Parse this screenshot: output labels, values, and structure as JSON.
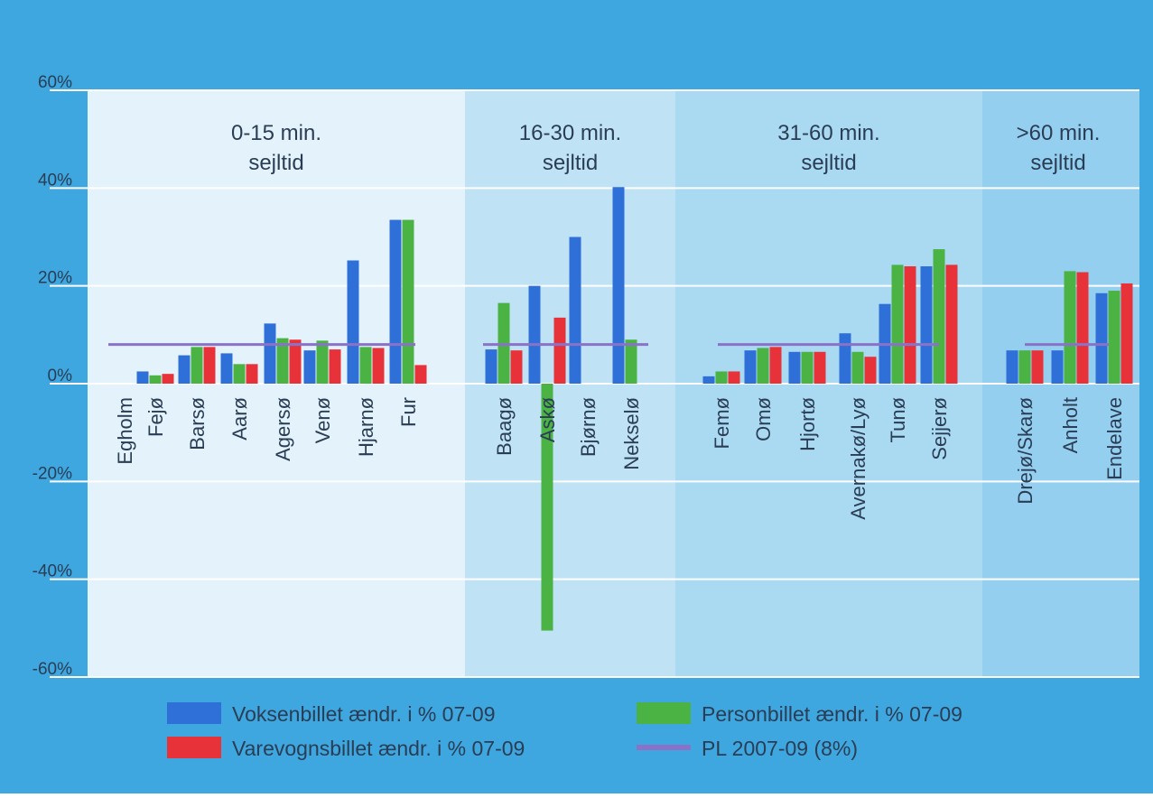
{
  "colors": {
    "frame": "#3fa7df",
    "panel_1": "#e4f3fb",
    "panel_2": "#bfe3f5",
    "panel_3": "#a9daf2",
    "panel_4": "#95cfef",
    "series_voksen": "#2f6fd8",
    "series_person": "#4bb244",
    "series_varevogn": "#e8323a",
    "series_pl": "#8a72c8",
    "text": "#2a3d55"
  },
  "chart_data": {
    "type": "bar",
    "ylim": [
      -60,
      60
    ],
    "y_ticks": [
      60,
      40,
      20,
      0,
      -20,
      -40,
      -60
    ],
    "y_tick_labels": [
      "60%",
      "40%",
      "20%",
      "0%",
      "-20%",
      "-40%",
      "-60%"
    ],
    "grid": true,
    "legend_position": "bottom",
    "groups": [
      {
        "label_line1": "0-15 min.",
        "label_line2": "sejltid",
        "categories": [
          "Egholm",
          "Fejø",
          "Barsø",
          "Aarø",
          "Agersø",
          "Venø",
          "Hjarnø",
          "Fur"
        ]
      },
      {
        "label_line1": "16-30 min.",
        "label_line2": "sejltid",
        "categories": [
          "Baagø",
          "Askø",
          "Bjørnø",
          "Nekselø"
        ]
      },
      {
        "label_line1": "31-60 min.",
        "label_line2": "sejltid",
        "categories": [
          "Femø",
          "Omø",
          "Hjortø",
          "Avernakø/Lyø",
          "Tunø",
          "Sejjerø"
        ]
      },
      {
        "label_line1": ">60 min.",
        "label_line2": "sejltid",
        "categories": [
          "Drejø/Skarø",
          "Anholt",
          "Endelave"
        ]
      }
    ],
    "series": [
      {
        "name": "Voksenbillet ændr. i % 07-09",
        "key": "voksen",
        "values": [
          [
            null,
            2.5,
            5.8,
            6.2,
            12.3,
            6.8,
            25.2,
            33.5
          ],
          [
            7.0,
            20.0,
            30.0,
            40.2
          ],
          [
            1.5,
            6.8,
            6.5,
            10.3,
            16.3,
            24.0
          ],
          [
            6.8,
            6.8,
            18.5
          ]
        ]
      },
      {
        "name": "Personbillet ændr. i % 07-09",
        "key": "person",
        "values": [
          [
            null,
            1.7,
            7.5,
            4.0,
            9.3,
            8.8,
            7.5,
            33.5
          ],
          [
            16.5,
            -50.5,
            null,
            9.0
          ],
          [
            2.5,
            7.3,
            6.5,
            6.5,
            24.3,
            27.5
          ],
          [
            6.8,
            23.0,
            19.0
          ]
        ]
      },
      {
        "name": "Varevognsbillet ændr. i % 07-09",
        "key": "varevogn",
        "values": [
          [
            null,
            2.0,
            7.5,
            4.0,
            9.0,
            7.0,
            7.3,
            3.8
          ],
          [
            6.8,
            13.5,
            null,
            null
          ],
          [
            2.5,
            7.5,
            6.5,
            5.5,
            24.0,
            24.3
          ],
          [
            6.8,
            22.8,
            20.5
          ]
        ]
      }
    ],
    "reference_line": {
      "name": "PL 2007-09 (8%)",
      "value": 8
    }
  }
}
